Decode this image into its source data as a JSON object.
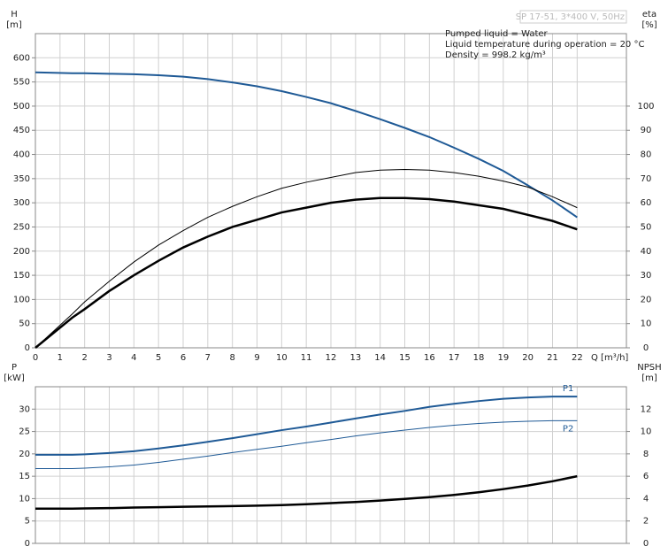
{
  "chart_data": [
    {
      "type": "line",
      "subtitle": "SP 17-51, 3*400 V, 50Hz",
      "annotations": [
        "Pumped liquid = Water",
        "Liquid temperature during operation = 20 °C",
        "Density = 998.2 kg/m³"
      ],
      "ylabel": "H",
      "yunit": "[m]",
      "y2label": "eta",
      "y2unit": "[%]",
      "xlabel": "Q [m³/h]",
      "xlim": [
        0,
        24
      ],
      "xticks": [
        0,
        1,
        2,
        3,
        4,
        5,
        6,
        7,
        8,
        9,
        10,
        11,
        12,
        13,
        14,
        15,
        16,
        17,
        18,
        19,
        20,
        21,
        22
      ],
      "ylim": [
        0,
        650
      ],
      "yticks": [
        0,
        50,
        100,
        150,
        200,
        250,
        300,
        350,
        400,
        450,
        500,
        550,
        600
      ],
      "y2lim": [
        0,
        130
      ],
      "y2ticks": [
        0,
        10,
        20,
        30,
        40,
        50,
        60,
        70,
        80,
        90,
        100
      ],
      "grid": true,
      "x": [
        0,
        1.5,
        2,
        3,
        4,
        5,
        6,
        7,
        8,
        9,
        10,
        11,
        12,
        13,
        14,
        15,
        16,
        17,
        18,
        19,
        20,
        21,
        22
      ],
      "series": [
        {
          "color": "#1f5a96",
          "width": 2,
          "axis": "y",
          "values": [
            570,
            568,
            568,
            567,
            566,
            564,
            561,
            556,
            549,
            541,
            531,
            519,
            506,
            490,
            473,
            455,
            436,
            414,
            391,
            366,
            336,
            305,
            270
          ]
        },
        {
          "color": "#000000",
          "width": 1,
          "axis": "y2",
          "values": [
            0,
            14,
            19,
            27.5,
            35.5,
            42.5,
            48.5,
            54,
            58.5,
            62.5,
            66,
            68.5,
            70.5,
            72.5,
            73.5,
            73.8,
            73.5,
            72.5,
            71,
            69,
            66.5,
            62.5,
            58
          ]
        },
        {
          "color": "#000000",
          "width": 2.5,
          "axis": "y2",
          "values": [
            0,
            12.5,
            16,
            23.5,
            30,
            36,
            41.5,
            46,
            50,
            53,
            56,
            58,
            60,
            61.3,
            62,
            62,
            61.5,
            60.5,
            59,
            57.5,
            55,
            52.5,
            49
          ]
        }
      ]
    },
    {
      "type": "line",
      "ylabel": "P",
      "yunit": "[kW]",
      "y2label": "NPSH",
      "y2unit": "[m]",
      "xlim": [
        0,
        24
      ],
      "ylim": [
        0,
        35
      ],
      "yticks": [
        0,
        5,
        10,
        15,
        20,
        25,
        30
      ],
      "y2lim": [
        0,
        14
      ],
      "y2ticks": [
        0,
        2,
        4,
        6,
        8,
        10,
        12
      ],
      "grid": true,
      "x": [
        0,
        1.5,
        2,
        3,
        4,
        5,
        6,
        7,
        8,
        9,
        10,
        11,
        12,
        13,
        14,
        15,
        16,
        17,
        18,
        19,
        20,
        21,
        22
      ],
      "series": [
        {
          "name": "P1",
          "color": "#1f5a96",
          "width": 2,
          "axis": "y",
          "values": [
            19.8,
            19.8,
            19.9,
            20.2,
            20.6,
            21.2,
            21.9,
            22.7,
            23.5,
            24.4,
            25.3,
            26.1,
            27,
            27.9,
            28.8,
            29.6,
            30.5,
            31.2,
            31.8,
            32.3,
            32.6,
            32.8,
            32.8
          ]
        },
        {
          "name": "P2",
          "color": "#1f5a96",
          "width": 1,
          "axis": "y",
          "values": [
            16.7,
            16.7,
            16.8,
            17.1,
            17.5,
            18.1,
            18.8,
            19.5,
            20.3,
            21,
            21.7,
            22.5,
            23.2,
            24,
            24.7,
            25.3,
            25.9,
            26.4,
            26.8,
            27.1,
            27.3,
            27.4,
            27.4
          ]
        },
        {
          "color": "#000000",
          "width": 2.5,
          "axis": "y2",
          "values": [
            3.1,
            3.1,
            3.12,
            3.15,
            3.2,
            3.23,
            3.27,
            3.3,
            3.33,
            3.37,
            3.42,
            3.5,
            3.6,
            3.7,
            3.83,
            3.97,
            4.13,
            4.33,
            4.57,
            4.85,
            5.17,
            5.55,
            6.0
          ]
        }
      ]
    }
  ]
}
